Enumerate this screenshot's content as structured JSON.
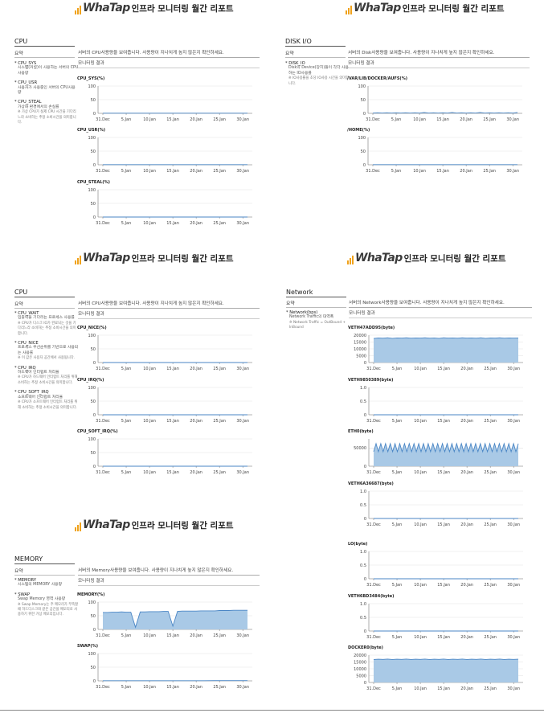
{
  "header": {
    "logo_text": "WhaTap",
    "report_title": "인프라 모니터링 월간 리포트"
  },
  "x_ticks": [
    "31.Dec",
    "5.Jan",
    "10.Jan",
    "15.Jan",
    "20.Jan",
    "25.Jan",
    "30.Jan"
  ],
  "summary_label": "요약",
  "result_label": "모니터링 결과",
  "colors": {
    "line": "#4a86c5",
    "area": "#a9c9e6",
    "grid": "#e1e1e1",
    "brand_bars": "#f0a21b"
  },
  "blocks": {
    "cpu1": {
      "section": "CPU",
      "intro": "서버의 CPU사용량을 보여줍니다. 사용량이 지나치게 높지 않은지 확인하세요.",
      "metrics": [
        {
          "name": "* CPU_SYS",
          "desc": "시스템(커널)이 사용하는 서버의 CPU사용량",
          "note": ""
        },
        {
          "name": "* CPU_USR",
          "desc": "사용자가 사용중인 서버의 CPU사용량",
          "note": ""
        },
        {
          "name": "* CPU_STEAL",
          "desc": "가상화 환경에서의 손실률",
          "note": "※ 가상 CPU가 실제 CPU 시간을 기다리느라 소비하는 추정 소비시간을 의미합니다."
        }
      ]
    },
    "disk": {
      "section": "DISK I/O",
      "intro": "서버의 Disk사용량을 보여줍니다. 사용량이 지나치게 높지 않은지 확인하세요.",
      "metrics": [
        {
          "name": "* DISK_IO",
          "desc": "Disk의 Device(장치)들이 각각 사용하는 IO사용률",
          "note": "※ IO사용률을 초당 IO사용 시간을 의미합니다."
        }
      ]
    },
    "cpu2": {
      "section": "CPU",
      "intro": "서버의 CPU사용량을 보여줍니다. 사용량이 지나치게 높지 않은지 확인하세요.",
      "metrics": [
        {
          "name": "* CPU_WAIT",
          "desc": "입출력을 기다리는 프로세스 사용률",
          "note": "※ CPU가 디스크 IO가 완료되는 것을 기다리느라 소비하는 추정 소비시간을 의미합니다."
        },
        {
          "name": "* CPU_NICE",
          "desc": "프로세스 우선순위를 기반으로 사용되는 사용률",
          "note": "※ 이 값은 사용자 공간에서 사용됩니다."
        },
        {
          "name": "* CPU_IRQ",
          "desc": "하드웨어 인터럽트 처리율",
          "note": "※ CPU가 하드웨어 인터럽트 처리를 위해 소비하는 추정 소비시간을 의미합니다."
        },
        {
          "name": "* CPU_SOFT_IRQ",
          "desc": "소프트웨어 인터럽트 처리율",
          "note": "※ CPU가 소프트웨어 인터럽트 처리를 위해 소비하는 추정 소비시간을 의미합니다."
        }
      ]
    },
    "network": {
      "section": "Network",
      "intro": "서버의 Network사용량을 보여줍니다. 사용량이 지나치게 높지 않은지 확인하세요.",
      "metrics": [
        {
          "name": "* Network(bps)",
          "desc": "Network Traffic의 대역폭",
          "note": "※ Network Traffic = OutBound + InBound"
        }
      ]
    },
    "memory": {
      "section": "MEMORY",
      "intro": "서버의 Memory사용량을 보여줍니다. 사용량이 지나치게 높지 않은지 확인하세요.",
      "metrics": [
        {
          "name": "* MEMORY",
          "desc": "시스템의 MEMORY 사용량",
          "note": ""
        },
        {
          "name": "* SWAP",
          "desc": "Swap Memory 영역 사용량",
          "note": "※ Swap Memory는 주 메모리가 부족할 때 하드디스크와 같은 공간을 메모리로 사용하기 위한 가상 메모리입니다."
        }
      ]
    }
  },
  "chart_data": [
    {
      "type": "line",
      "title": "CPU_SYS(%)",
      "y_ticks": [
        "100",
        "50",
        "0"
      ],
      "ylim": [
        0,
        100
      ],
      "x_range": [
        0,
        31
      ],
      "values": [
        0.5,
        0.5,
        0.5,
        0.5,
        0.5,
        0.5,
        0.5,
        0.5
      ]
    },
    {
      "type": "line",
      "title": "CPU_USR(%)",
      "y_ticks": [
        "100",
        "50",
        "0"
      ],
      "ylim": [
        0,
        100
      ],
      "x_range": [
        0,
        31
      ],
      "values": [
        0.5,
        0.5,
        0.5,
        0.5,
        0.5,
        0.5,
        0.5,
        0.5
      ]
    },
    {
      "type": "line",
      "title": "CPU_STEAL(%)",
      "y_ticks": [
        "100",
        "50",
        "0"
      ],
      "ylim": [
        0,
        100
      ],
      "x_range": [
        0,
        31
      ],
      "values": [
        0,
        0,
        0,
        0,
        0,
        0,
        0,
        0
      ]
    },
    {
      "type": "line",
      "title": "/VAR/LIB/DOCKER/AUFS(%)",
      "y_ticks": [
        "100",
        "50",
        "0"
      ],
      "ylim": [
        0,
        100
      ],
      "x_range": [
        0,
        31
      ],
      "values": [
        1,
        2,
        1,
        2,
        1,
        2,
        1,
        2,
        1,
        2,
        1,
        3,
        1,
        2,
        1,
        2,
        1,
        3,
        1,
        2,
        1,
        2,
        1,
        3,
        1,
        2,
        1,
        2,
        1,
        2,
        1,
        3
      ]
    },
    {
      "type": "line",
      "title": "/HOME(%)",
      "y_ticks": [
        "100",
        "50",
        "0"
      ],
      "ylim": [
        0,
        100
      ],
      "x_range": [
        0,
        31
      ],
      "values": [
        0.5,
        0.5,
        0.5,
        0.5,
        0.5,
        0.5,
        0.5,
        0.5
      ]
    },
    {
      "type": "line",
      "title": "CPU_NICE(%)",
      "y_ticks": [
        "100",
        "50",
        "0"
      ],
      "ylim": [
        0,
        100
      ],
      "x_range": [
        0,
        31
      ],
      "values": [
        0,
        0,
        0,
        0,
        0,
        0,
        0,
        0
      ]
    },
    {
      "type": "line",
      "title": "CPU_IRQ(%)",
      "y_ticks": [
        "100",
        "50",
        "0"
      ],
      "ylim": [
        0,
        100
      ],
      "x_range": [
        0,
        31
      ],
      "values": [
        0,
        0,
        0,
        0,
        0,
        0,
        0,
        0
      ]
    },
    {
      "type": "line",
      "title": "CPU_SOFT_IRQ(%)",
      "y_ticks": [
        "100",
        "50",
        "0"
      ],
      "ylim": [
        0,
        100
      ],
      "x_range": [
        0,
        31
      ],
      "values": [
        0,
        0,
        0,
        0,
        0,
        0,
        0,
        0
      ]
    },
    {
      "type": "area",
      "title": "VETH47ADD95(byte)",
      "y_ticks": [
        "20000",
        "15000",
        "10000",
        "5000",
        "0"
      ],
      "ylim": [
        0,
        20000
      ],
      "x_range": [
        0,
        31
      ],
      "values": [
        17600,
        18000,
        17800,
        18100,
        17700,
        18000,
        17900,
        18100,
        17800,
        18000,
        17900,
        18100,
        17800,
        18000,
        17700,
        18100,
        17900,
        18000,
        17800,
        18100,
        17900,
        18000,
        17800,
        18100,
        17700,
        18000,
        17900,
        18100,
        17800,
        18000,
        17900,
        18000
      ]
    },
    {
      "type": "line",
      "title": "VETH9850389(byte)",
      "y_ticks": [
        "1.0",
        "0.5",
        "0"
      ],
      "ylim": [
        0,
        1
      ],
      "x_range": [
        0,
        31
      ],
      "values": [
        0,
        0,
        0,
        0,
        0,
        0,
        0,
        0
      ]
    },
    {
      "type": "area",
      "title": "ETH0(byte)",
      "y_ticks": [
        "50000",
        "0"
      ],
      "ylim": [
        0,
        75000
      ],
      "x_range": [
        0,
        31
      ],
      "values": [
        40000,
        62000,
        40000,
        62000,
        40000,
        62000,
        40000,
        62000,
        40000,
        62000,
        40000,
        62000,
        40000,
        62000,
        40000,
        62000,
        40000,
        62000,
        40000,
        62000,
        40000,
        62000,
        40000,
        62000,
        40000,
        62000,
        40000,
        62000,
        40000,
        62000,
        40000,
        62000,
        40000,
        62000,
        40000,
        62000,
        40000,
        62000,
        40000,
        62000,
        40000,
        62000,
        40000,
        62000,
        40000,
        62000,
        40000,
        62000,
        40000,
        62000,
        40000,
        62000,
        40000,
        62000,
        40000,
        62000,
        40000,
        62000,
        40000,
        62000,
        40000,
        62000
      ]
    },
    {
      "type": "line",
      "title": "VETH6A36687(byte)",
      "y_ticks": [
        "1.0",
        "0.5",
        "0"
      ],
      "ylim": [
        0,
        1
      ],
      "x_range": [
        0,
        31
      ],
      "values": [
        0,
        0,
        0,
        0,
        0,
        0,
        0,
        0
      ]
    },
    {
      "type": "line",
      "title": "LO(byte)",
      "y_ticks": [
        "1.0",
        "0.5",
        "0"
      ],
      "ylim": [
        0,
        1
      ],
      "x_range": [
        0,
        31
      ],
      "values": [
        0,
        0,
        0,
        0,
        0,
        0,
        0,
        0
      ]
    },
    {
      "type": "line",
      "title": "VETH6BD3484(byte)",
      "y_ticks": [
        "1.0",
        "0.5",
        "0"
      ],
      "ylim": [
        0,
        1
      ],
      "x_range": [
        0,
        31
      ],
      "values": [
        0,
        0,
        0,
        0,
        0,
        0,
        0,
        0
      ]
    },
    {
      "type": "area",
      "title": "DOCKER0(byte)",
      "y_ticks": [
        "20000",
        "15000",
        "10000",
        "5000",
        "0"
      ],
      "ylim": [
        0,
        20000
      ],
      "x_range": [
        0,
        31
      ],
      "values": [
        16800,
        17000,
        16900,
        17100,
        16800,
        17000,
        16900,
        17100,
        16800,
        17000,
        16900,
        17100,
        16800,
        17000,
        16900,
        17100,
        16800,
        17000,
        16900,
        17100,
        16800,
        17000,
        16900,
        17100,
        16800,
        17000,
        16900,
        17100,
        16800,
        17000,
        16900,
        17000
      ]
    },
    {
      "type": "area",
      "title": "MEMORY(%)",
      "y_ticks": [
        "100",
        "50",
        "0"
      ],
      "ylim": [
        0,
        100
      ],
      "x_range": [
        0,
        31
      ],
      "values": [
        62,
        62,
        63,
        63,
        64,
        63,
        63,
        8,
        64,
        64,
        65,
        65,
        65,
        66,
        66,
        12,
        66,
        67,
        67,
        67,
        67,
        68,
        68,
        68,
        68,
        69,
        69,
        69,
        70,
        70,
        70,
        70
      ]
    },
    {
      "type": "line",
      "title": "SWAP(%)",
      "y_ticks": [
        "100",
        "50",
        "0"
      ],
      "ylim": [
        0,
        100
      ],
      "x_range": [
        0,
        31
      ],
      "values": [
        0.5,
        0.5,
        0.5,
        0.5,
        0.5,
        0.5,
        0.5,
        0.5,
        0.5,
        0.5,
        1,
        1,
        1,
        1
      ]
    }
  ]
}
